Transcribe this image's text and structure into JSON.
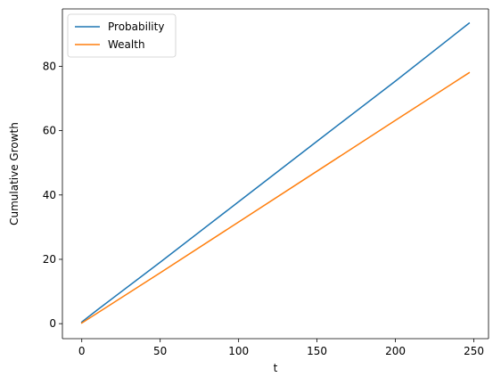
{
  "chart_data": {
    "type": "line",
    "title": "",
    "xlabel": "t",
    "ylabel": "Cumulative Growth",
    "xlim": [
      -12.35,
      259.35
    ],
    "ylim": [
      -4.66,
      97.83
    ],
    "xticks": [
      0,
      50,
      100,
      150,
      200,
      250
    ],
    "yticks": [
      0,
      20,
      40,
      60,
      80
    ],
    "grid": false,
    "legend_position": "upper-left",
    "series": [
      {
        "name": "Probability",
        "color": "#1f77b4",
        "x": [
          0,
          10,
          50,
          100,
          150,
          200,
          247
        ],
        "y": [
          0.5,
          4.3,
          19.1,
          37.9,
          56.7,
          75.4,
          93.4
        ]
      },
      {
        "name": "Wealth",
        "color": "#ff7f0e",
        "x": [
          0,
          50,
          100,
          150,
          200,
          247
        ],
        "y": [
          0.2,
          15.8,
          31.6,
          47.4,
          63.2,
          78.0
        ]
      }
    ]
  }
}
